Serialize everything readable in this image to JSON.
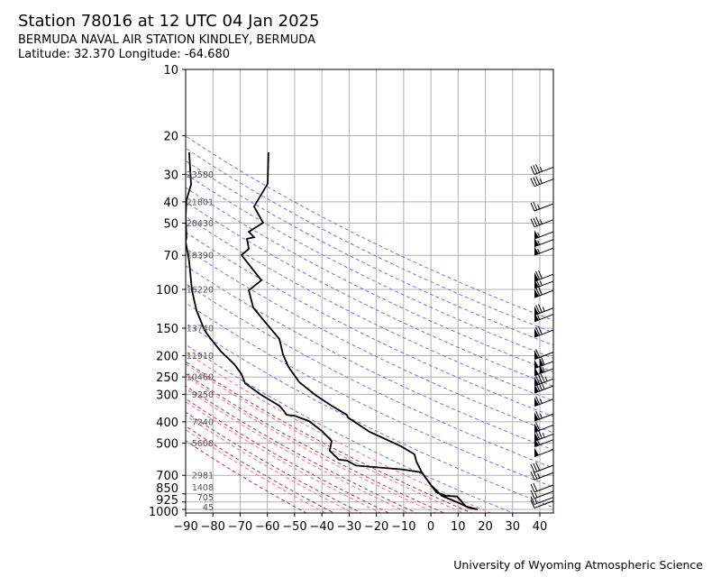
{
  "chart_data": {
    "type": "line",
    "title": "Station 78016 at 12 UTC 04 Jan 2025",
    "subtitle": "BERMUDA NAVAL AIR STATION KINDLEY, BERMUDA",
    "location": "Latitude: 32.370 Longitude: -64.680",
    "credit": "University of Wyoming Atmospheric Science",
    "xlim": [
      -90,
      45
    ],
    "ylim": [
      1050,
      10
    ],
    "yscale": "log",
    "grid": true,
    "xticks": [
      -90,
      -80,
      -70,
      -60,
      -50,
      -40,
      -30,
      -20,
      -10,
      0,
      10,
      20,
      30,
      40
    ],
    "yticks": [
      10,
      20,
      30,
      40,
      50,
      70,
      100,
      150,
      200,
      250,
      300,
      400,
      500,
      700,
      850,
      925,
      1000
    ],
    "height_labels": [
      {
        "p": 30,
        "h": "23580"
      },
      {
        "p": 40,
        "h": "21801"
      },
      {
        "p": 50,
        "h": "20430"
      },
      {
        "p": 70,
        "h": "18390"
      },
      {
        "p": 100,
        "h": "16220"
      },
      {
        "p": 150,
        "h": "13740"
      },
      {
        "p": 200,
        "h": "11910"
      },
      {
        "p": 250,
        "h": "10460"
      },
      {
        "p": 300,
        "h": "9250"
      },
      {
        "p": 400,
        "h": "7240"
      },
      {
        "p": 500,
        "h": "5600"
      },
      {
        "p": 700,
        "h": "2981"
      },
      {
        "p": 850,
        "h": "1408"
      },
      {
        "p": 925,
        "h": "705"
      },
      {
        "p": 1000,
        "h": "45"
      }
    ],
    "series": [
      {
        "name": "Temperature",
        "color": "#000000",
        "points": [
          [
            23.8,
            -59.6
          ],
          [
            33.1,
            -59.9
          ],
          [
            42.0,
            -64.9
          ],
          [
            49.8,
            -61.6
          ],
          [
            54.7,
            -66.8
          ],
          [
            57.9,
            -64.9
          ],
          [
            58.9,
            -67.5
          ],
          [
            65.4,
            -66.8
          ],
          [
            69.8,
            -69.5
          ],
          [
            90.9,
            -62.2
          ],
          [
            101,
            -66.8
          ],
          [
            121,
            -65.2
          ],
          [
            139,
            -61.2
          ],
          [
            168,
            -55.6
          ],
          [
            197,
            -54.3
          ],
          [
            225,
            -52.3
          ],
          [
            264,
            -48.3
          ],
          [
            302,
            -42.4
          ],
          [
            338,
            -36.4
          ],
          [
            372,
            -30.8
          ],
          [
            382,
            -30.5
          ],
          [
            444,
            -22.5
          ],
          [
            517,
            -10.9
          ],
          [
            562,
            -6.0
          ],
          [
            606,
            -5.3
          ],
          [
            679,
            -3.3
          ],
          [
            775,
            0.0
          ],
          [
            868,
            4.0
          ],
          [
            927,
            9.6
          ],
          [
            982,
            13.9
          ],
          [
            1000,
            17.2
          ]
        ]
      },
      {
        "name": "Dewpoint",
        "color": "#000000",
        "points": [
          [
            23.8,
            -88.7
          ],
          [
            33.4,
            -88.0
          ],
          [
            39.3,
            -89.7
          ],
          [
            46.6,
            -90
          ],
          [
            57.9,
            -89.7
          ],
          [
            60.7,
            -90
          ],
          [
            74.6,
            -88.7
          ],
          [
            101,
            -87.7
          ],
          [
            125,
            -86.0
          ],
          [
            153,
            -83.1
          ],
          [
            166,
            -81.1
          ],
          [
            191,
            -77.1
          ],
          [
            219,
            -72.1
          ],
          [
            243,
            -69.5
          ],
          [
            267,
            -68.2
          ],
          [
            302,
            -62.2
          ],
          [
            338,
            -55.6
          ],
          [
            361,
            -53.6
          ],
          [
            372,
            -53.0
          ],
          [
            375,
            -50.0
          ],
          [
            397,
            -44.7
          ],
          [
            440,
            -40.0
          ],
          [
            488,
            -36.4
          ],
          [
            541,
            -37.1
          ],
          [
            594,
            -33.8
          ],
          [
            600,
            -30.8
          ],
          [
            632,
            -27.5
          ],
          [
            658,
            -10.6
          ],
          [
            679,
            -3.3
          ],
          [
            775,
            0.0
          ],
          [
            836,
            2.0
          ],
          [
            868,
            5.6
          ],
          [
            873,
            9.6
          ],
          [
            970,
            12.9
          ],
          [
            1000,
            17.2
          ]
        ]
      }
    ],
    "dry_adiabats_K": [
      300,
      320,
      340,
      360,
      380,
      400,
      420,
      440,
      460,
      480,
      500,
      520,
      540,
      560
    ],
    "moist_lines_K": [
      230,
      240,
      250,
      260,
      270,
      280,
      290
    ],
    "mixing_lines_K": [
      225,
      235,
      245,
      255,
      265,
      275,
      285
    ],
    "wind_barbs": [
      {
        "p": 30,
        "kt": 35
      },
      {
        "p": 34,
        "kt": 35
      },
      {
        "p": 44,
        "kt": 25
      },
      {
        "p": 52,
        "kt": 35
      },
      {
        "p": 59,
        "kt": 55
      },
      {
        "p": 64,
        "kt": 55
      },
      {
        "p": 70,
        "kt": 55
      },
      {
        "p": 92,
        "kt": 70
      },
      {
        "p": 99,
        "kt": 65
      },
      {
        "p": 109,
        "kt": 70
      },
      {
        "p": 131,
        "kt": 75
      },
      {
        "p": 140,
        "kt": 55
      },
      {
        "p": 165,
        "kt": 70
      },
      {
        "p": 208,
        "kt": 60
      },
      {
        "p": 229,
        "kt": 110
      },
      {
        "p": 247,
        "kt": 105
      },
      {
        "p": 275,
        "kt": 85
      },
      {
        "p": 296,
        "kt": 80
      },
      {
        "p": 340,
        "kt": 65
      },
      {
        "p": 397,
        "kt": 65
      },
      {
        "p": 446,
        "kt": 60
      },
      {
        "p": 490,
        "kt": 75
      },
      {
        "p": 520,
        "kt": 55
      },
      {
        "p": 576,
        "kt": 50
      },
      {
        "p": 679,
        "kt": 30
      },
      {
        "p": 734,
        "kt": 25
      },
      {
        "p": 835,
        "kt": 20
      },
      {
        "p": 892,
        "kt": 15
      },
      {
        "p": 950,
        "kt": 15
      },
      {
        "p": 986,
        "kt": 10
      }
    ],
    "colors": {
      "grid": "#b0b0b0",
      "dry": "#7070ff",
      "moist": "#ff7070",
      "mixing": "#b03080"
    }
  }
}
